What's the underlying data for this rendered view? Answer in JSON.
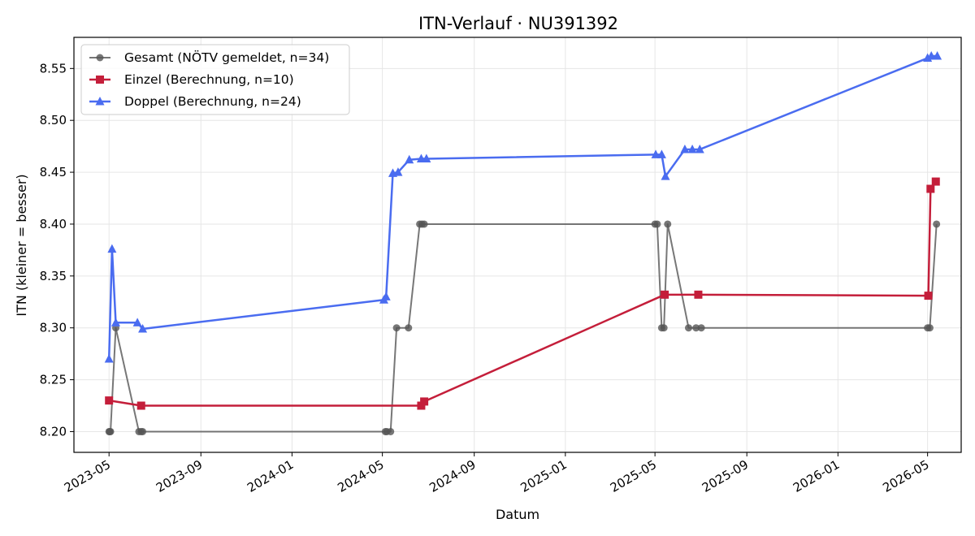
{
  "chart_data": {
    "type": "line",
    "title": "ITN-Verlauf · NU391392",
    "xlabel": "Datum",
    "ylabel": "ITN  (kleiner = besser)",
    "x_axis_type": "date",
    "xlim": [
      "2023-03-15",
      "2026-06-15"
    ],
    "ylim": [
      8.18,
      8.58
    ],
    "xticks": [
      "2023-05",
      "2023-09",
      "2024-01",
      "2024-05",
      "2024-09",
      "2025-01",
      "2025-05",
      "2025-09",
      "2026-01",
      "2026-05"
    ],
    "yticks": [
      "8.20",
      "8.25",
      "8.30",
      "8.35",
      "8.40",
      "8.45",
      "8.50",
      "8.55"
    ],
    "grid": true,
    "legend_position": "top-left",
    "series": [
      {
        "name": "Gesamt (NÖTV gemeldet, n=34)",
        "color": "#555555",
        "marker": "circle",
        "points": [
          {
            "x": "2023-05-01",
            "y": 8.2
          },
          {
            "x": "2023-05-02",
            "y": 8.2
          },
          {
            "x": "2023-05-03",
            "y": 8.2
          },
          {
            "x": "2023-05-10",
            "y": 8.3
          },
          {
            "x": "2023-06-10",
            "y": 8.2
          },
          {
            "x": "2023-06-13",
            "y": 8.2
          },
          {
            "x": "2023-06-15",
            "y": 8.2
          },
          {
            "x": "2024-05-05",
            "y": 8.2
          },
          {
            "x": "2024-05-07",
            "y": 8.2
          },
          {
            "x": "2024-05-12",
            "y": 8.2
          },
          {
            "x": "2024-05-20",
            "y": 8.3
          },
          {
            "x": "2024-06-05",
            "y": 8.3
          },
          {
            "x": "2024-06-20",
            "y": 8.4
          },
          {
            "x": "2024-06-23",
            "y": 8.4
          },
          {
            "x": "2024-06-26",
            "y": 8.4
          },
          {
            "x": "2025-05-01",
            "y": 8.4
          },
          {
            "x": "2025-05-04",
            "y": 8.4
          },
          {
            "x": "2025-05-10",
            "y": 8.3
          },
          {
            "x": "2025-05-13",
            "y": 8.3
          },
          {
            "x": "2025-05-18",
            "y": 8.4
          },
          {
            "x": "2025-06-15",
            "y": 8.3
          },
          {
            "x": "2025-06-25",
            "y": 8.3
          },
          {
            "x": "2025-07-02",
            "y": 8.3
          },
          {
            "x": "2026-05-01",
            "y": 8.3
          },
          {
            "x": "2026-05-04",
            "y": 8.3
          },
          {
            "x": "2026-05-13",
            "y": 8.4
          }
        ]
      },
      {
        "name": "Einzel (Berechnung, n=10)",
        "color": "#c41e3a",
        "marker": "square",
        "points": [
          {
            "x": "2023-05-01",
            "y": 8.23
          },
          {
            "x": "2023-06-13",
            "y": 8.225
          },
          {
            "x": "2024-06-22",
            "y": 8.225
          },
          {
            "x": "2024-06-26",
            "y": 8.229
          },
          {
            "x": "2025-05-14",
            "y": 8.332
          },
          {
            "x": "2025-06-28",
            "y": 8.332
          },
          {
            "x": "2026-05-02",
            "y": 8.331
          },
          {
            "x": "2026-05-05",
            "y": 8.434
          },
          {
            "x": "2026-05-12",
            "y": 8.441
          }
        ]
      },
      {
        "name": "Doppel (Berechnung, n=24)",
        "color": "#4a6cf0",
        "marker": "triangle",
        "points": [
          {
            "x": "2023-05-01",
            "y": 8.27
          },
          {
            "x": "2023-05-05",
            "y": 8.376
          },
          {
            "x": "2023-05-10",
            "y": 8.305
          },
          {
            "x": "2023-06-08",
            "y": 8.305
          },
          {
            "x": "2023-06-15",
            "y": 8.299
          },
          {
            "x": "2024-05-03",
            "y": 8.327
          },
          {
            "x": "2024-05-06",
            "y": 8.33
          },
          {
            "x": "2024-05-15",
            "y": 8.449
          },
          {
            "x": "2024-05-22",
            "y": 8.45
          },
          {
            "x": "2024-06-06",
            "y": 8.462
          },
          {
            "x": "2024-06-22",
            "y": 8.463
          },
          {
            "x": "2024-06-29",
            "y": 8.463
          },
          {
            "x": "2025-05-02",
            "y": 8.467
          },
          {
            "x": "2025-05-10",
            "y": 8.467
          },
          {
            "x": "2025-05-15",
            "y": 8.446
          },
          {
            "x": "2025-06-10",
            "y": 8.472
          },
          {
            "x": "2025-06-20",
            "y": 8.472
          },
          {
            "x": "2025-06-30",
            "y": 8.472
          },
          {
            "x": "2026-05-01",
            "y": 8.56
          },
          {
            "x": "2026-05-06",
            "y": 8.562
          },
          {
            "x": "2026-05-14",
            "y": 8.562
          }
        ]
      }
    ]
  }
}
